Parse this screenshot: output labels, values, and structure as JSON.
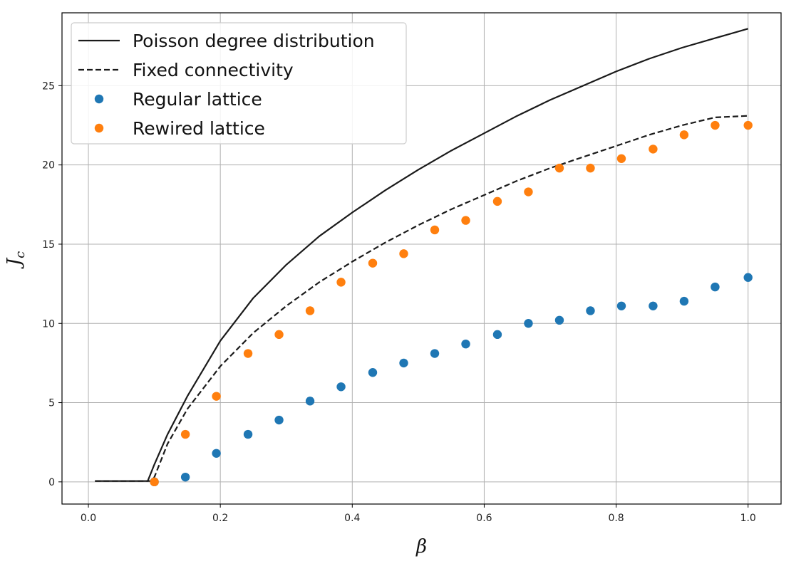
{
  "chart_data": {
    "type": "line",
    "xlabel": "β",
    "ylabel": "J",
    "ylabel_subscript": "c",
    "xlim": [
      -0.04,
      1.05
    ],
    "ylim": [
      -1.4,
      29.6
    ],
    "xticks": [
      0.0,
      0.2,
      0.4,
      0.6,
      0.8,
      1.0
    ],
    "xtick_labels": [
      "0.0",
      "0.2",
      "0.4",
      "0.6",
      "0.8",
      "1.0"
    ],
    "yticks": [
      0,
      5,
      10,
      15,
      20,
      25
    ],
    "ytick_labels": [
      "0",
      "5",
      "10",
      "15",
      "20",
      "25"
    ],
    "grid": true,
    "legend_position": "top-left",
    "series": [
      {
        "name": "Poisson degree distribution",
        "kind": "line",
        "style": "solid",
        "color": "#1a1a1a",
        "x": [
          0.01,
          0.09,
          0.1,
          0.12,
          0.15,
          0.2,
          0.25,
          0.3,
          0.35,
          0.4,
          0.45,
          0.5,
          0.55,
          0.6,
          0.65,
          0.7,
          0.75,
          0.8,
          0.85,
          0.9,
          0.95,
          1.0
        ],
        "y": [
          0.05,
          0.05,
          1.1,
          3.0,
          5.4,
          8.9,
          11.6,
          13.7,
          15.5,
          17.0,
          18.4,
          19.7,
          20.9,
          22.0,
          23.1,
          24.1,
          25.0,
          25.9,
          26.7,
          27.4,
          28.0,
          28.6
        ]
      },
      {
        "name": "Fixed connectivity",
        "kind": "line",
        "style": "dashed",
        "color": "#1a1a1a",
        "x": [
          0.01,
          0.095,
          0.1,
          0.12,
          0.15,
          0.2,
          0.25,
          0.3,
          0.35,
          0.4,
          0.45,
          0.5,
          0.55,
          0.6,
          0.65,
          0.7,
          0.75,
          0.8,
          0.85,
          0.9,
          0.95,
          1.0
        ],
        "y": [
          0.05,
          0.05,
          0.3,
          2.4,
          4.6,
          7.3,
          9.4,
          11.1,
          12.6,
          13.9,
          15.1,
          16.2,
          17.2,
          18.1,
          19.0,
          19.8,
          20.5,
          21.2,
          21.9,
          22.5,
          23.0,
          23.1
        ]
      },
      {
        "name": "Regular lattice",
        "kind": "scatter",
        "color": "#1f77b4",
        "x": [
          0.1,
          0.147,
          0.194,
          0.242,
          0.289,
          0.336,
          0.383,
          0.431,
          0.478,
          0.525,
          0.572,
          0.62,
          0.667,
          0.714,
          0.761,
          0.808,
          0.856,
          0.903,
          0.95,
          1.0
        ],
        "y": [
          0.0,
          0.3,
          1.8,
          3.0,
          3.9,
          5.1,
          6.0,
          6.9,
          7.5,
          8.1,
          8.7,
          9.3,
          10.0,
          10.2,
          10.8,
          11.1,
          11.1,
          11.4,
          12.3,
          12.9
        ]
      },
      {
        "name": "Rewired lattice",
        "kind": "scatter",
        "color": "#ff7f0e",
        "x": [
          0.1,
          0.147,
          0.194,
          0.242,
          0.289,
          0.336,
          0.383,
          0.431,
          0.478,
          0.525,
          0.572,
          0.62,
          0.667,
          0.714,
          0.761,
          0.808,
          0.856,
          0.903,
          0.95,
          1.0
        ],
        "y": [
          0.0,
          3.0,
          5.4,
          8.1,
          9.3,
          10.8,
          12.6,
          13.8,
          14.4,
          15.9,
          16.5,
          17.7,
          18.3,
          19.8,
          19.8,
          20.4,
          21.0,
          21.9,
          22.5,
          22.5
        ]
      }
    ]
  }
}
